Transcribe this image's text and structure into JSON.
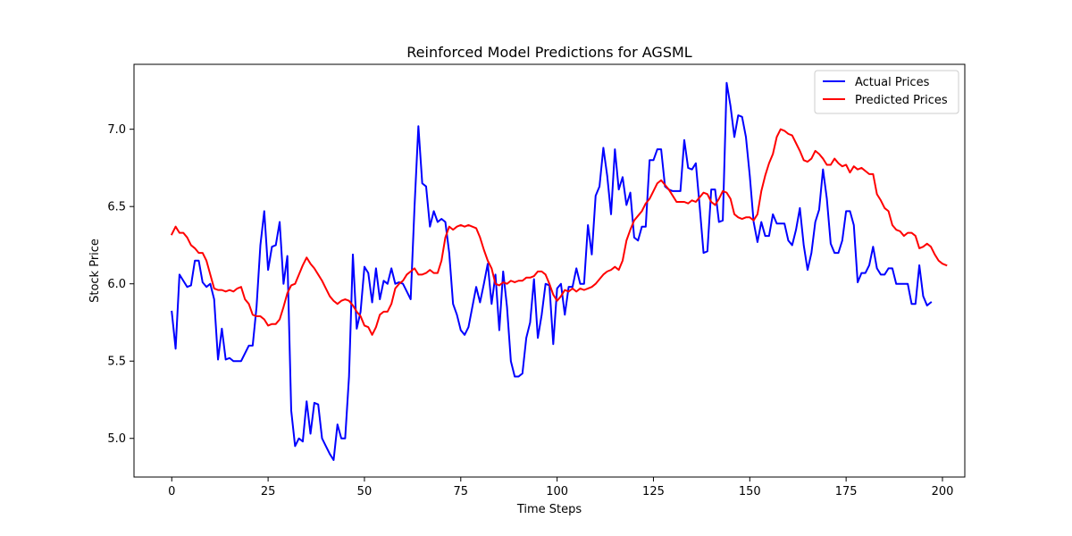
{
  "chart_data": {
    "type": "line",
    "title": "Reinforced Model Predictions for AGSML",
    "xlabel": "Time Steps",
    "ylabel": "Stock Price",
    "xlim": [
      -9.8,
      205.8
    ],
    "ylim": [
      4.75,
      7.42
    ],
    "xticks": [
      0,
      25,
      50,
      75,
      100,
      125,
      150,
      175,
      200
    ],
    "yticks": [
      5.0,
      5.5,
      6.0,
      6.5,
      7.0
    ],
    "xtick_labels": [
      "0",
      "25",
      "50",
      "75",
      "100",
      "125",
      "150",
      "175",
      "200"
    ],
    "ytick_labels": [
      "5.0",
      "5.5",
      "6.0",
      "6.5",
      "7.0"
    ],
    "grid": false,
    "legend_position": "top-right",
    "series": [
      {
        "name": "Actual Prices",
        "color": "#0000ff",
        "values": [
          5.82,
          5.58,
          6.06,
          6.02,
          5.98,
          5.99,
          6.15,
          6.15,
          6.01,
          5.98,
          6.0,
          5.9,
          5.51,
          5.71,
          5.51,
          5.52,
          5.5,
          5.5,
          5.5,
          5.55,
          5.6,
          5.6,
          5.85,
          6.25,
          6.47,
          6.09,
          6.24,
          6.25,
          6.4,
          6.0,
          6.18,
          5.18,
          4.95,
          5.0,
          4.98,
          5.24,
          5.03,
          5.23,
          5.22,
          5.0,
          4.95,
          4.9,
          4.86,
          5.09,
          5.0,
          5.0,
          5.4,
          6.19,
          5.71,
          5.82,
          6.11,
          6.07,
          5.88,
          6.1,
          5.9,
          6.02,
          6.0,
          6.1,
          6.0,
          6.01,
          6.0,
          5.95,
          5.9,
          6.5,
          7.02,
          6.65,
          6.63,
          6.37,
          6.47,
          6.4,
          6.42,
          6.4,
          6.2,
          5.87,
          5.8,
          5.7,
          5.67,
          5.72,
          5.85,
          5.98,
          5.88,
          6.0,
          6.13,
          5.87,
          6.06,
          5.7,
          6.08,
          5.85,
          5.5,
          5.4,
          5.4,
          5.42,
          5.65,
          5.75,
          6.03,
          5.65,
          5.8,
          6.0,
          5.99,
          5.61,
          5.97,
          6.0,
          5.8,
          5.98,
          5.98,
          6.1,
          6.0,
          6.0,
          6.38,
          6.19,
          6.57,
          6.63,
          6.88,
          6.7,
          6.45,
          6.87,
          6.61,
          6.69,
          6.51,
          6.59,
          6.3,
          6.28,
          6.37,
          6.37,
          6.8,
          6.8,
          6.87,
          6.87,
          6.63,
          6.61,
          6.6,
          6.6,
          6.6,
          6.93,
          6.75,
          6.74,
          6.78,
          6.5,
          6.2,
          6.21,
          6.61,
          6.61,
          6.4,
          6.41,
          7.3,
          7.15,
          6.95,
          7.09,
          7.08,
          6.95,
          6.7,
          6.4,
          6.27,
          6.4,
          6.31,
          6.31,
          6.45,
          6.39,
          6.39,
          6.39,
          6.28,
          6.25,
          6.35,
          6.49,
          6.25,
          6.09,
          6.2,
          6.4,
          6.48,
          6.74,
          6.55,
          6.26,
          6.2,
          6.2,
          6.28,
          6.47,
          6.47,
          6.38,
          6.01,
          6.07,
          6.07,
          6.12,
          6.24,
          6.1,
          6.06,
          6.06,
          6.1,
          6.1,
          6.0,
          6.0,
          6.0,
          6.0,
          5.87,
          5.87,
          6.12,
          5.92,
          5.86,
          5.88
        ]
      },
      {
        "name": "Predicted Prices",
        "color": "#ff0000",
        "values": [
          6.32,
          6.37,
          6.33,
          6.33,
          6.3,
          6.25,
          6.23,
          6.2,
          6.2,
          6.15,
          6.06,
          5.97,
          5.96,
          5.96,
          5.95,
          5.96,
          5.95,
          5.97,
          5.98,
          5.9,
          5.87,
          5.8,
          5.79,
          5.79,
          5.77,
          5.73,
          5.74,
          5.74,
          5.77,
          5.85,
          5.94,
          5.99,
          6.0,
          6.06,
          6.12,
          6.17,
          6.13,
          6.1,
          6.06,
          6.02,
          5.97,
          5.92,
          5.89,
          5.87,
          5.89,
          5.9,
          5.89,
          5.86,
          5.82,
          5.79,
          5.73,
          5.72,
          5.67,
          5.72,
          5.8,
          5.82,
          5.82,
          5.87,
          5.97,
          6.0,
          6.02,
          6.06,
          6.08,
          6.1,
          6.06,
          6.06,
          6.07,
          6.09,
          6.07,
          6.07,
          6.15,
          6.3,
          6.37,
          6.35,
          6.37,
          6.38,
          6.37,
          6.38,
          6.37,
          6.36,
          6.3,
          6.22,
          6.15,
          6.1,
          6.0,
          5.99,
          6.01,
          6.0,
          6.02,
          6.01,
          6.02,
          6.02,
          6.04,
          6.04,
          6.05,
          6.08,
          6.08,
          6.06,
          6.0,
          5.93,
          5.89,
          5.92,
          5.96,
          5.95,
          5.97,
          5.95,
          5.97,
          5.96,
          5.97,
          5.98,
          6.0,
          6.03,
          6.06,
          6.08,
          6.09,
          6.11,
          6.09,
          6.15,
          6.28,
          6.35,
          6.41,
          6.44,
          6.47,
          6.52,
          6.55,
          6.6,
          6.65,
          6.67,
          6.64,
          6.61,
          6.57,
          6.53,
          6.53,
          6.53,
          6.52,
          6.54,
          6.53,
          6.56,
          6.59,
          6.58,
          6.53,
          6.51,
          6.55,
          6.6,
          6.59,
          6.55,
          6.45,
          6.43,
          6.42,
          6.43,
          6.43,
          6.41,
          6.45,
          6.6,
          6.7,
          6.78,
          6.84,
          6.95,
          7.0,
          6.99,
          6.97,
          6.96,
          6.91,
          6.86,
          6.8,
          6.79,
          6.81,
          6.86,
          6.84,
          6.81,
          6.77,
          6.77,
          6.81,
          6.78,
          6.76,
          6.77,
          6.72,
          6.76,
          6.74,
          6.75,
          6.73,
          6.71,
          6.71,
          6.58,
          6.54,
          6.49,
          6.47,
          6.38,
          6.35,
          6.34,
          6.31,
          6.33,
          6.33,
          6.31,
          6.23,
          6.24,
          6.26,
          6.24,
          6.19,
          6.15,
          6.13,
          6.12
        ]
      }
    ]
  }
}
